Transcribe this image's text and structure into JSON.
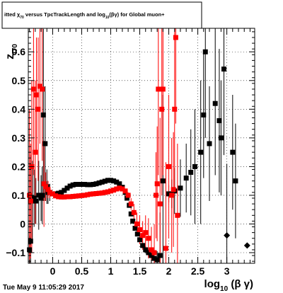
{
  "header": {
    "title": "itted  χ_{70} versus TpcTrackLength and log_{10}(βγ) for Global muon+",
    "title_parts": {
      "pre": "itted  ",
      "chi": "χ",
      "chi_sub": "70",
      "mid": " versus TpcTrackLength and log",
      "log_sub": "10",
      "post": "(βγ) for Global muon+"
    }
  },
  "footer": {
    "timestamp": "Tue May  9 11:05:29 2017"
  },
  "chart_data": {
    "type": "scatter",
    "title": "itted  χ_{70} versus TpcTrackLength and log_{10}(βγ) for Global muon+",
    "xlabel": "log_{10} (β γ)",
    "xlabel_parts": {
      "main": "log",
      "sub": "10",
      "rest": " (β γ)"
    },
    "ylabel": "z_{I70}",
    "ylabel_parts": {
      "main": "z",
      "sub": "I70"
    },
    "xlim": [
      -0.42,
      3.48
    ],
    "ylim": [
      -0.137,
      0.682
    ],
    "x_ticks": [
      {
        "v": 0,
        "label": "0"
      },
      {
        "v": 0.5,
        "label": "0.5"
      },
      {
        "v": 1,
        "label": "1"
      },
      {
        "v": 1.5,
        "label": "1.5"
      },
      {
        "v": 2,
        "label": "2"
      },
      {
        "v": 2.5,
        "label": "2.5"
      },
      {
        "v": 3,
        "label": "3"
      }
    ],
    "y_ticks": [
      {
        "v": -0.1,
        "label": "−0.1"
      },
      {
        "v": 0,
        "label": "0"
      },
      {
        "v": 0.1,
        "label": "0.1"
      },
      {
        "v": 0.2,
        "label": "0.2"
      },
      {
        "v": 0.3,
        "label": "0.3"
      },
      {
        "v": 0.4,
        "label": "0.4"
      },
      {
        "v": 0.5,
        "label": "0.5"
      },
      {
        "v": 0.6,
        "label": "0.6"
      }
    ],
    "grid": true,
    "series": [
      {
        "color": "#000000",
        "marker": "square",
        "points": [
          {
            "x": -0.4,
            "y": -0.09,
            "e": 0.05
          },
          {
            "x": -0.38,
            "y": -0.06,
            "e": 0.3
          },
          {
            "x": -0.35,
            "y": 0.08,
            "e": 0.14
          },
          {
            "x": -0.32,
            "y": 0.09,
            "e": 0.1
          },
          {
            "x": -0.29,
            "y": 0.08,
            "e": 0.08
          },
          {
            "x": -0.24,
            "y": 0.1,
            "e": 0.12
          },
          {
            "x": -0.2,
            "y": 0.09,
            "e": 0.08
          },
          {
            "x": -0.18,
            "y": 0.1,
            "e": 0.1
          },
          {
            "x": -0.16,
            "y": 0.38,
            "e": 0.3
          },
          {
            "x": -0.13,
            "y": 0.28,
            "e": 0.2
          },
          {
            "x": -0.1,
            "y": 0.13,
            "e": 0.06
          },
          {
            "x": -0.08,
            "y": 0.11,
            "e": 0.04
          },
          {
            "x": -0.05,
            "y": 0.11,
            "e": 0.03
          },
          {
            "x": 0.0,
            "y": 0.105,
            "e": 0
          },
          {
            "x": 0.05,
            "y": 0.105,
            "e": 0
          },
          {
            "x": 0.1,
            "y": 0.107,
            "e": 0
          },
          {
            "x": 0.15,
            "y": 0.11,
            "e": 0
          },
          {
            "x": 0.2,
            "y": 0.117,
            "e": 0
          },
          {
            "x": 0.25,
            "y": 0.125,
            "e": 0
          },
          {
            "x": 0.3,
            "y": 0.132,
            "e": 0
          },
          {
            "x": 0.35,
            "y": 0.136,
            "e": 0
          },
          {
            "x": 0.4,
            "y": 0.138,
            "e": 0
          },
          {
            "x": 0.45,
            "y": 0.138,
            "e": 0
          },
          {
            "x": 0.5,
            "y": 0.138,
            "e": 0
          },
          {
            "x": 0.55,
            "y": 0.138,
            "e": 0
          },
          {
            "x": 0.6,
            "y": 0.137,
            "e": 0
          },
          {
            "x": 0.65,
            "y": 0.137,
            "e": 0
          },
          {
            "x": 0.7,
            "y": 0.138,
            "e": 0
          },
          {
            "x": 0.75,
            "y": 0.14,
            "e": 0
          },
          {
            "x": 0.8,
            "y": 0.143,
            "e": 0
          },
          {
            "x": 0.85,
            "y": 0.146,
            "e": 0
          },
          {
            "x": 0.9,
            "y": 0.149,
            "e": 0
          },
          {
            "x": 0.95,
            "y": 0.152,
            "e": 0
          },
          {
            "x": 1.0,
            "y": 0.152,
            "e": 0
          },
          {
            "x": 1.05,
            "y": 0.15,
            "e": 0
          },
          {
            "x": 1.1,
            "y": 0.146,
            "e": 0
          },
          {
            "x": 1.15,
            "y": 0.14,
            "e": 0
          },
          {
            "x": 1.2,
            "y": 0.128,
            "e": 0
          },
          {
            "x": 1.25,
            "y": 0.11,
            "e": 0
          },
          {
            "x": 1.28,
            "y": 0.09,
            "e": 0
          },
          {
            "x": 1.32,
            "y": 0.065,
            "e": 0
          },
          {
            "x": 1.35,
            "y": 0.035,
            "e": 0.004
          },
          {
            "x": 1.38,
            "y": 0.01,
            "e": 0.005
          },
          {
            "x": 1.42,
            "y": -0.015,
            "e": 0.006
          },
          {
            "x": 1.46,
            "y": -0.035,
            "e": 0.007
          },
          {
            "x": 1.5,
            "y": -0.055,
            "e": 0.008
          },
          {
            "x": 1.55,
            "y": -0.075,
            "e": 0.01
          },
          {
            "x": 1.6,
            "y": -0.09,
            "e": 0.012
          },
          {
            "x": 1.65,
            "y": -0.1,
            "e": 0.014
          },
          {
            "x": 1.7,
            "y": -0.11,
            "e": 0.016
          },
          {
            "x": 1.75,
            "y": -0.12,
            "e": 0.02
          },
          {
            "x": 1.8,
            "y": -0.125,
            "e": 0.03
          },
          {
            "x": 1.85,
            "y": -0.11,
            "e": 0.15
          },
          {
            "x": 1.9,
            "y": 0.15,
            "e": 0.3
          },
          {
            "x": 2.0,
            "y": 0.105,
            "e": 0.03
          },
          {
            "x": 2.05,
            "y": 0.105,
            "e": 0.05
          },
          {
            "x": 2.1,
            "y": 0.115,
            "e": 0.08
          },
          {
            "x": 2.2,
            "y": 0.125,
            "e": 0.1
          },
          {
            "x": 2.3,
            "y": 0.16,
            "e": 0.12
          },
          {
            "x": 2.38,
            "y": 0.18,
            "e": 0.15
          },
          {
            "x": 2.45,
            "y": 0.2,
            "e": 0.2
          },
          {
            "x": 2.55,
            "y": 0.25,
            "e": 0.25
          },
          {
            "x": 2.6,
            "y": 0.38,
            "e": 0.22
          },
          {
            "x": 2.63,
            "y": 0.6,
            "e": 0.3
          },
          {
            "x": 2.7,
            "y": 0.28,
            "e": 0.2
          },
          {
            "x": 2.8,
            "y": 0.42,
            "e": 0.25
          },
          {
            "x": 2.87,
            "y": 0.36,
            "e": 0.25
          },
          {
            "x": 2.9,
            "y": 0.3,
            "e": 0.2
          },
          {
            "x": 2.95,
            "y": 0.54,
            "e": 0.3
          },
          {
            "x": 3.0,
            "y": -0.04,
            "e": 0.25
          },
          {
            "x": 3.1,
            "y": 0.25,
            "e": 0.2
          },
          {
            "x": 3.15,
            "y": 0.15,
            "e": 0.2
          },
          {
            "x": 3.35,
            "y": -0.075,
            "e": 0
          }
        ]
      },
      {
        "color": "#ff0000",
        "marker": "square",
        "points": [
          {
            "x": -0.4,
            "y": 0.1,
            "e": 0.3
          },
          {
            "x": -0.38,
            "y": 0.08,
            "e": 0.2
          },
          {
            "x": -0.36,
            "y": 0.2,
            "e": 0.3
          },
          {
            "x": -0.33,
            "y": 0.47,
            "e": 0.3
          },
          {
            "x": -0.3,
            "y": 0.25,
            "e": 0.25
          },
          {
            "x": -0.28,
            "y": 0.45,
            "e": 0.2
          },
          {
            "x": -0.25,
            "y": 0.4,
            "e": 0.25
          },
          {
            "x": -0.22,
            "y": 0.48,
            "e": 0.2
          },
          {
            "x": -0.18,
            "y": 0.47,
            "e": 0.25
          },
          {
            "x": -0.15,
            "y": 0.14,
            "e": 0.15
          },
          {
            "x": -0.12,
            "y": 0.13,
            "e": 0.05
          },
          {
            "x": -0.08,
            "y": 0.12,
            "e": 0.03
          },
          {
            "x": -0.05,
            "y": 0.11,
            "e": 0.02
          },
          {
            "x": 0.0,
            "y": 0.105,
            "e": 0
          },
          {
            "x": 0.05,
            "y": 0.098,
            "e": 0
          },
          {
            "x": 0.1,
            "y": 0.095,
            "e": 0
          },
          {
            "x": 0.15,
            "y": 0.094,
            "e": 0
          },
          {
            "x": 0.2,
            "y": 0.094,
            "e": 0
          },
          {
            "x": 0.25,
            "y": 0.095,
            "e": 0
          },
          {
            "x": 0.3,
            "y": 0.095,
            "e": 0
          },
          {
            "x": 0.35,
            "y": 0.096,
            "e": 0
          },
          {
            "x": 0.4,
            "y": 0.097,
            "e": 0
          },
          {
            "x": 0.45,
            "y": 0.098,
            "e": 0
          },
          {
            "x": 0.5,
            "y": 0.099,
            "e": 0
          },
          {
            "x": 0.55,
            "y": 0.1,
            "e": 0
          },
          {
            "x": 0.6,
            "y": 0.102,
            "e": 0
          },
          {
            "x": 0.65,
            "y": 0.104,
            "e": 0
          },
          {
            "x": 0.7,
            "y": 0.105,
            "e": 0
          },
          {
            "x": 0.75,
            "y": 0.106,
            "e": 0
          },
          {
            "x": 0.8,
            "y": 0.107,
            "e": 0
          },
          {
            "x": 0.85,
            "y": 0.108,
            "e": 0
          },
          {
            "x": 0.9,
            "y": 0.11,
            "e": 0
          },
          {
            "x": 0.95,
            "y": 0.112,
            "e": 0
          },
          {
            "x": 1.0,
            "y": 0.115,
            "e": 0
          },
          {
            "x": 1.05,
            "y": 0.118,
            "e": 0
          },
          {
            "x": 1.1,
            "y": 0.122,
            "e": 0
          },
          {
            "x": 1.15,
            "y": 0.125,
            "e": 0
          },
          {
            "x": 1.2,
            "y": 0.122,
            "e": 0
          },
          {
            "x": 1.25,
            "y": 0.115,
            "e": 0
          },
          {
            "x": 1.3,
            "y": 0.1,
            "e": 0.01
          },
          {
            "x": 1.35,
            "y": 0.07,
            "e": 0.02
          },
          {
            "x": 1.4,
            "y": 0.04,
            "e": 0.03
          },
          {
            "x": 1.45,
            "y": 0.0,
            "e": 0.04
          },
          {
            "x": 1.5,
            "y": -0.02,
            "e": 0.05
          },
          {
            "x": 1.55,
            "y": -0.04,
            "e": 0.05
          },
          {
            "x": 1.6,
            "y": -0.03,
            "e": 0.06
          },
          {
            "x": 1.65,
            "y": -0.05,
            "e": 0.07
          },
          {
            "x": 1.7,
            "y": -0.09,
            "e": 0.08
          },
          {
            "x": 1.75,
            "y": -0.1,
            "e": 0.1
          },
          {
            "x": 1.78,
            "y": 0.1,
            "e": 0.15
          },
          {
            "x": 1.8,
            "y": 0.14,
            "e": 0.2
          },
          {
            "x": 1.82,
            "y": 0.47,
            "e": 0.3
          },
          {
            "x": 1.85,
            "y": 0.07,
            "e": 0.3
          },
          {
            "x": 1.88,
            "y": 0.4,
            "e": 0.3
          },
          {
            "x": 1.9,
            "y": 0.47,
            "e": 0.3
          },
          {
            "x": 1.95,
            "y": -0.085,
            "e": 0.3
          },
          {
            "x": 2.0,
            "y": 0.2,
            "e": 0.25
          },
          {
            "x": 2.05,
            "y": 0.1,
            "e": 0.2
          },
          {
            "x": 2.08,
            "y": 0.12,
            "e": 0.2
          },
          {
            "x": 2.1,
            "y": 0.4,
            "e": 0.3
          },
          {
            "x": 2.12,
            "y": 0.65,
            "e": 0.3
          },
          {
            "x": 2.15,
            "y": 0.03,
            "e": 0.25
          }
        ]
      }
    ]
  }
}
